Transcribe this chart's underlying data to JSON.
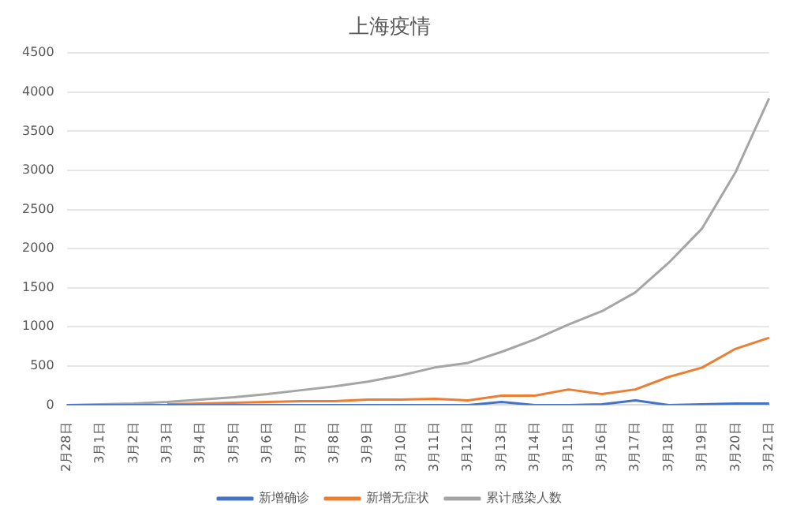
{
  "chart_data": {
    "type": "line",
    "title": "上海疫情",
    "categories": [
      "2月28日",
      "3月1日",
      "3月2日",
      "3月3日",
      "3月4日",
      "3月5日",
      "3月6日",
      "3月7日",
      "3月8日",
      "3月9日",
      "3月10日",
      "3月11日",
      "3月12日",
      "3月13日",
      "3月14日",
      "3月15日",
      "3月16日",
      "3月17日",
      "3月18日",
      "3月19日",
      "3月20日",
      "3月21日"
    ],
    "series": [
      {
        "name": "新增确诊",
        "color": "#4472c4",
        "values": [
          0,
          0,
          0,
          0,
          0,
          0,
          0,
          0,
          0,
          0,
          0,
          0,
          0,
          40,
          0,
          0,
          10,
          60,
          0,
          10,
          20,
          20
        ]
      },
      {
        "name": "新增无症状",
        "color": "#ed7d31",
        "values": [
          null,
          null,
          null,
          10,
          20,
          30,
          40,
          50,
          50,
          70,
          70,
          80,
          60,
          120,
          120,
          200,
          140,
          200,
          360,
          480,
          720,
          860
        ]
      },
      {
        "name": "累计感染人数",
        "color": "#a5a5a5",
        "values": [
          0,
          10,
          20,
          40,
          70,
          100,
          140,
          190,
          240,
          300,
          380,
          480,
          540,
          680,
          840,
          1030,
          1200,
          1440,
          1820,
          2260,
          2980,
          3920
        ]
      }
    ],
    "ylim": [
      0,
      4500
    ],
    "yticks": [
      0,
      500,
      1000,
      1500,
      2000,
      2500,
      3000,
      3500,
      4000,
      4500
    ],
    "grid": "y",
    "legend": "bottom",
    "marker": "none",
    "line_style": "solid"
  }
}
